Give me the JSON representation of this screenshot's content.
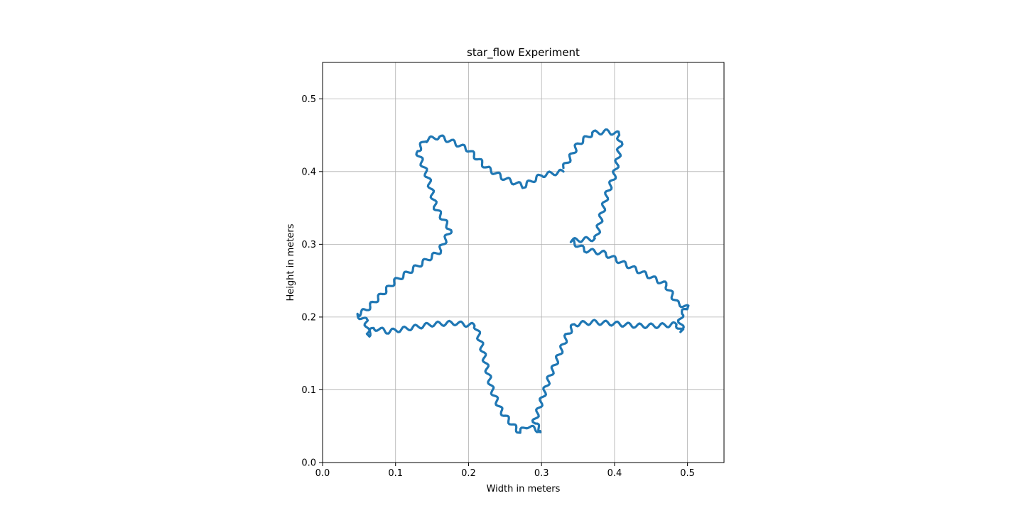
{
  "chart_data": {
    "type": "line",
    "title": "star_flow Experiment",
    "xlabel": "Width in meters",
    "ylabel": "Height in meters",
    "xlim": [
      0.0,
      0.55
    ],
    "ylim": [
      0.0,
      0.55
    ],
    "xticks": [
      0.0,
      0.1,
      0.2,
      0.3,
      0.4,
      0.5
    ],
    "xtick_labels": [
      "0.0",
      "0.1",
      "0.2",
      "0.3",
      "0.4",
      "0.5"
    ],
    "yticks": [
      0.0,
      0.1,
      0.2,
      0.3,
      0.4,
      0.5
    ],
    "ytick_labels": [
      "0.0",
      "0.1",
      "0.2",
      "0.3",
      "0.4",
      "0.5"
    ],
    "grid": true,
    "legend": "none",
    "series": [
      {
        "color": "#1f77b4",
        "points": [
          [
            0.33,
            0.4
          ],
          [
            0.3,
            0.395
          ],
          [
            0.275,
            0.38
          ],
          [
            0.25,
            0.39
          ],
          [
            0.225,
            0.405
          ],
          [
            0.2,
            0.43
          ],
          [
            0.18,
            0.44
          ],
          [
            0.16,
            0.448
          ],
          [
            0.14,
            0.443
          ],
          [
            0.13,
            0.428
          ],
          [
            0.145,
            0.39
          ],
          [
            0.155,
            0.35
          ],
          [
            0.175,
            0.32
          ],
          [
            0.16,
            0.29
          ],
          [
            0.13,
            0.27
          ],
          [
            0.1,
            0.25
          ],
          [
            0.075,
            0.225
          ],
          [
            0.06,
            0.21
          ],
          [
            0.047,
            0.203
          ],
          [
            0.06,
            0.195
          ],
          [
            0.062,
            0.175
          ],
          [
            0.07,
            0.185
          ],
          [
            0.09,
            0.18
          ],
          [
            0.12,
            0.185
          ],
          [
            0.15,
            0.19
          ],
          [
            0.18,
            0.192
          ],
          [
            0.21,
            0.188
          ],
          [
            0.218,
            0.16
          ],
          [
            0.225,
            0.13
          ],
          [
            0.232,
            0.1
          ],
          [
            0.245,
            0.07
          ],
          [
            0.262,
            0.05
          ],
          [
            0.27,
            0.042
          ],
          [
            0.28,
            0.05
          ],
          [
            0.3,
            0.043
          ],
          [
            0.29,
            0.055
          ],
          [
            0.3,
            0.085
          ],
          [
            0.31,
            0.115
          ],
          [
            0.325,
            0.15
          ],
          [
            0.335,
            0.175
          ],
          [
            0.345,
            0.19
          ],
          [
            0.37,
            0.193
          ],
          [
            0.4,
            0.191
          ],
          [
            0.43,
            0.188
          ],
          [
            0.46,
            0.188
          ],
          [
            0.485,
            0.19
          ],
          [
            0.493,
            0.18
          ],
          [
            0.49,
            0.195
          ],
          [
            0.492,
            0.205
          ],
          [
            0.5,
            0.213
          ],
          [
            0.485,
            0.22
          ],
          [
            0.47,
            0.245
          ],
          [
            0.44,
            0.26
          ],
          [
            0.41,
            0.275
          ],
          [
            0.385,
            0.288
          ],
          [
            0.36,
            0.292
          ],
          [
            0.34,
            0.305
          ],
          [
            0.375,
            0.308
          ],
          [
            0.382,
            0.34
          ],
          [
            0.39,
            0.37
          ],
          [
            0.4,
            0.395
          ],
          [
            0.405,
            0.42
          ],
          [
            0.408,
            0.44
          ],
          [
            0.405,
            0.452
          ],
          [
            0.39,
            0.455
          ],
          [
            0.37,
            0.453
          ],
          [
            0.35,
            0.438
          ],
          [
            0.34,
            0.42
          ],
          [
            0.33,
            0.405
          ]
        ]
      }
    ]
  }
}
